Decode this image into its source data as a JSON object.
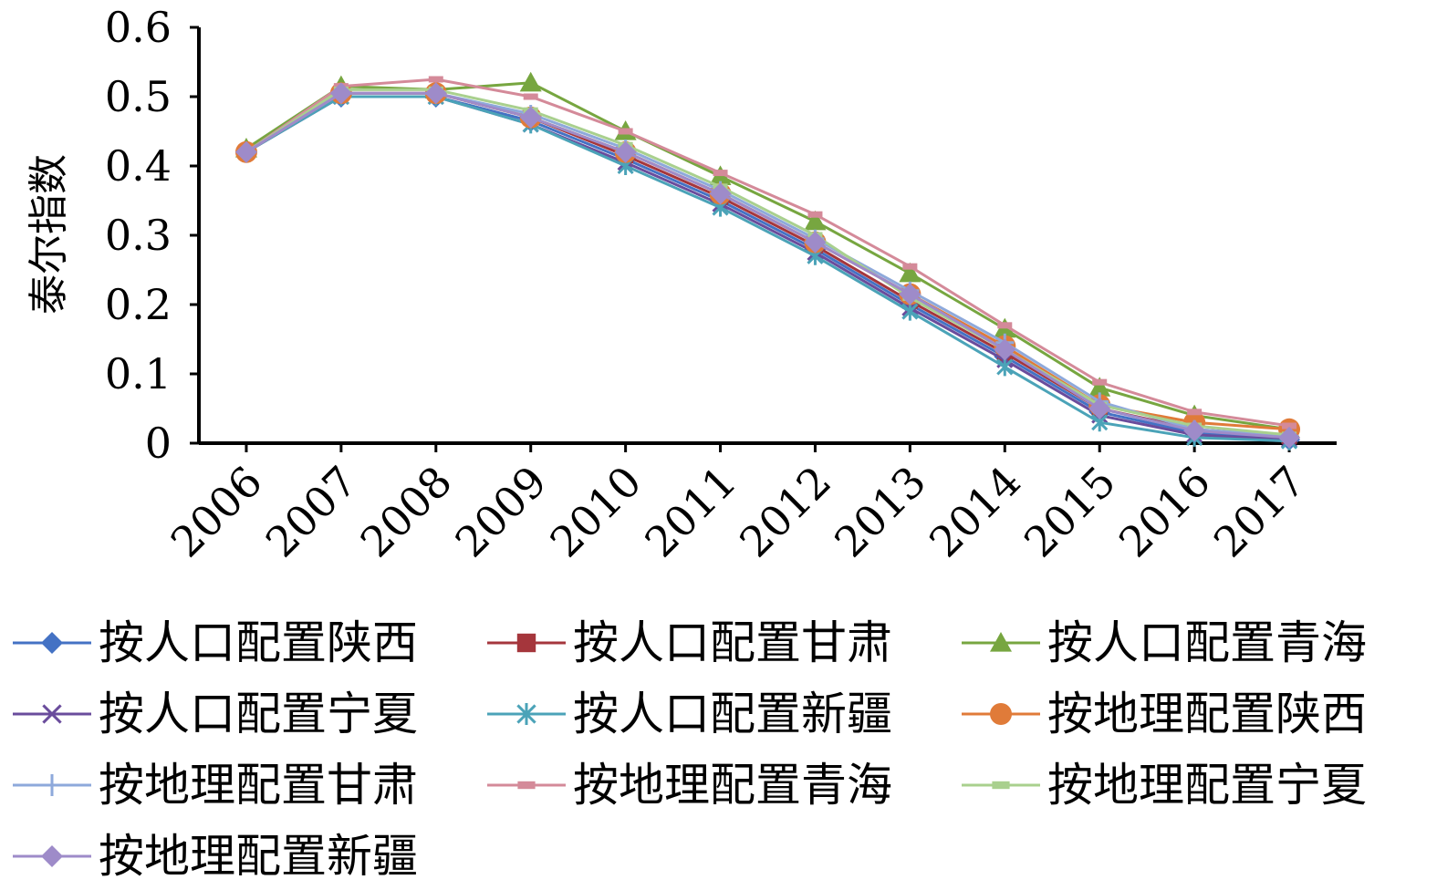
{
  "chart_data": {
    "type": "line",
    "title": "",
    "xlabel": "",
    "ylabel": "泰尔指数",
    "x": [
      "2006",
      "2007",
      "2008",
      "2009",
      "2010",
      "2011",
      "2012",
      "2013",
      "2014",
      "2015",
      "2016",
      "2017"
    ],
    "yticks": [
      "0",
      "0.1",
      "0.2",
      "0.3",
      "0.4",
      "0.5",
      "0.6"
    ],
    "ylim": [
      0,
      0.6
    ],
    "grid": false,
    "legend_position": "bottom",
    "series": [
      {
        "name": "按人口配置陕西",
        "color": "#4472C4",
        "marker": "diamond",
        "values": [
          0.42,
          0.5,
          0.5,
          0.465,
          0.41,
          0.35,
          0.28,
          0.2,
          0.125,
          0.045,
          0.015,
          0.005
        ]
      },
      {
        "name": "按人口配置甘肃",
        "color": "#A5363C",
        "marker": "square",
        "values": [
          0.42,
          0.505,
          0.505,
          0.47,
          0.415,
          0.355,
          0.285,
          0.205,
          0.13,
          0.05,
          0.02,
          0.01
        ]
      },
      {
        "name": "按人口配置青海",
        "color": "#77A640",
        "marker": "triangle",
        "values": [
          0.425,
          0.515,
          0.51,
          0.52,
          0.45,
          0.385,
          0.32,
          0.245,
          0.165,
          0.08,
          0.04,
          0.02
        ]
      },
      {
        "name": "按人口配置宁夏",
        "color": "#6A4C9C",
        "marker": "x",
        "values": [
          0.42,
          0.5,
          0.5,
          0.46,
          0.405,
          0.345,
          0.275,
          0.195,
          0.12,
          0.04,
          0.012,
          0.005
        ]
      },
      {
        "name": "按人口配置新疆",
        "color": "#4BA3B8",
        "marker": "star",
        "values": [
          0.42,
          0.5,
          0.5,
          0.46,
          0.4,
          0.34,
          0.27,
          0.19,
          0.11,
          0.03,
          0.008,
          0.003
        ]
      },
      {
        "name": "按地理配置陕西",
        "color": "#E07B39",
        "marker": "circle",
        "values": [
          0.42,
          0.505,
          0.505,
          0.47,
          0.42,
          0.36,
          0.29,
          0.215,
          0.14,
          0.055,
          0.03,
          0.02
        ]
      },
      {
        "name": "按地理配置甘肃",
        "color": "#8EA9DB",
        "marker": "plus",
        "values": [
          0.42,
          0.505,
          0.505,
          0.475,
          0.425,
          0.365,
          0.295,
          0.22,
          0.145,
          0.06,
          0.02,
          0.01
        ]
      },
      {
        "name": "按地理配置青海",
        "color": "#D48A99",
        "marker": "dash",
        "values": [
          0.42,
          0.515,
          0.525,
          0.5,
          0.45,
          0.39,
          0.33,
          0.255,
          0.17,
          0.088,
          0.045,
          0.025
        ]
      },
      {
        "name": "按地理配置宁夏",
        "color": "#A9D08E",
        "marker": "dash",
        "values": [
          0.42,
          0.51,
          0.51,
          0.48,
          0.43,
          0.37,
          0.3,
          0.21,
          0.135,
          0.055,
          0.025,
          0.012
        ]
      },
      {
        "name": "按地理配置新疆",
        "color": "#9E8BC9",
        "marker": "diamond",
        "values": [
          0.42,
          0.505,
          0.505,
          0.47,
          0.42,
          0.36,
          0.29,
          0.215,
          0.135,
          0.05,
          0.018,
          0.008
        ]
      }
    ]
  }
}
